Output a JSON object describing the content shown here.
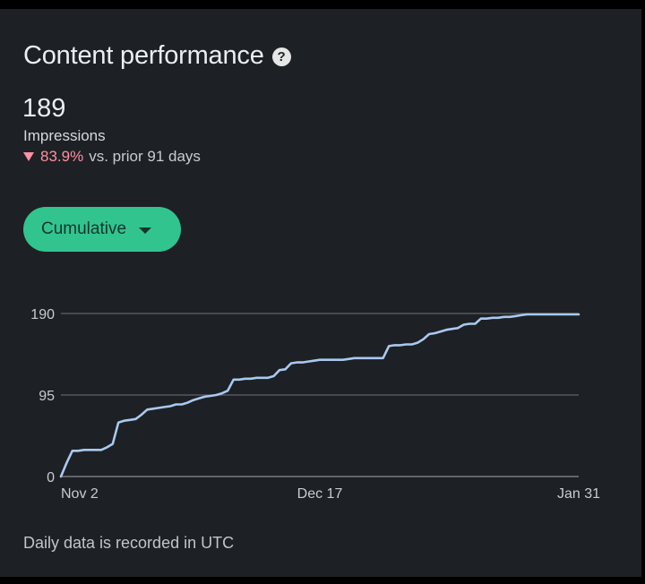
{
  "card": {
    "title": "Content performance",
    "help_icon": "question-circle-icon"
  },
  "metric": {
    "value": "189",
    "label": "Impressions",
    "change_icon": "triangle-down-icon",
    "change_percent": "83.9%",
    "change_text": "vs. prior 91 days"
  },
  "dropdown": {
    "label": "Cumulative",
    "icon": "caret-down-icon"
  },
  "footer": "Daily data is recorded in UTC",
  "colors": {
    "background": "#1d2024",
    "accent": "#31c48f",
    "negative": "#ff8fa3",
    "line": "#a9c9f0",
    "grid": "#5f6368"
  },
  "chart_data": {
    "type": "line",
    "title": "",
    "xlabel": "",
    "ylabel": "",
    "x_ticks": [
      "Nov 2",
      "Dec 17",
      "Jan 31"
    ],
    "y_ticks": [
      "0",
      "95",
      "190"
    ],
    "ylim": [
      0,
      190
    ],
    "x_day_range": [
      0,
      90
    ],
    "grid": true,
    "legend": "none",
    "series": [
      {
        "values": [
          [
            0,
            0
          ],
          [
            1,
            16
          ],
          [
            2,
            30
          ],
          [
            3,
            30
          ],
          [
            4,
            31
          ],
          [
            5,
            31
          ],
          [
            6,
            31
          ],
          [
            7,
            31
          ],
          [
            8,
            34
          ],
          [
            9,
            38
          ],
          [
            10,
            63
          ],
          [
            11,
            65
          ],
          [
            12,
            66
          ],
          [
            13,
            67
          ],
          [
            14,
            72
          ],
          [
            15,
            78
          ],
          [
            16,
            79
          ],
          [
            17,
            80
          ],
          [
            18,
            81
          ],
          [
            19,
            82
          ],
          [
            20,
            84
          ],
          [
            21,
            84
          ],
          [
            22,
            86
          ],
          [
            23,
            89
          ],
          [
            24,
            91
          ],
          [
            25,
            93
          ],
          [
            26,
            94
          ],
          [
            27,
            95
          ],
          [
            28,
            97
          ],
          [
            29,
            100
          ],
          [
            30,
            113
          ],
          [
            31,
            113
          ],
          [
            32,
            114
          ],
          [
            33,
            114
          ],
          [
            34,
            115
          ],
          [
            35,
            115
          ],
          [
            36,
            115
          ],
          [
            37,
            117
          ],
          [
            38,
            124
          ],
          [
            39,
            125
          ],
          [
            40,
            132
          ],
          [
            41,
            133
          ],
          [
            42,
            133
          ],
          [
            43,
            134
          ],
          [
            44,
            135
          ],
          [
            45,
            136
          ],
          [
            46,
            136
          ],
          [
            47,
            136
          ],
          [
            48,
            136
          ],
          [
            49,
            136
          ],
          [
            50,
            137
          ],
          [
            51,
            138
          ],
          [
            52,
            138
          ],
          [
            53,
            138
          ],
          [
            54,
            138
          ],
          [
            55,
            138
          ],
          [
            56,
            138
          ],
          [
            57,
            152
          ],
          [
            58,
            153
          ],
          [
            59,
            153
          ],
          [
            60,
            154
          ],
          [
            61,
            154
          ],
          [
            62,
            156
          ],
          [
            63,
            160
          ],
          [
            64,
            166
          ],
          [
            65,
            167
          ],
          [
            66,
            169
          ],
          [
            67,
            171
          ],
          [
            68,
            172
          ],
          [
            69,
            173
          ],
          [
            70,
            177
          ],
          [
            71,
            178
          ],
          [
            72,
            178
          ],
          [
            73,
            184
          ],
          [
            74,
            184
          ],
          [
            75,
            185
          ],
          [
            76,
            185
          ],
          [
            77,
            186
          ],
          [
            78,
            186
          ],
          [
            79,
            187
          ],
          [
            80,
            188
          ],
          [
            81,
            189
          ],
          [
            82,
            189
          ],
          [
            83,
            189
          ],
          [
            84,
            189
          ],
          [
            85,
            189
          ],
          [
            86,
            189
          ],
          [
            87,
            189
          ],
          [
            88,
            189
          ],
          [
            89,
            189
          ],
          [
            90,
            189
          ]
        ]
      }
    ]
  }
}
